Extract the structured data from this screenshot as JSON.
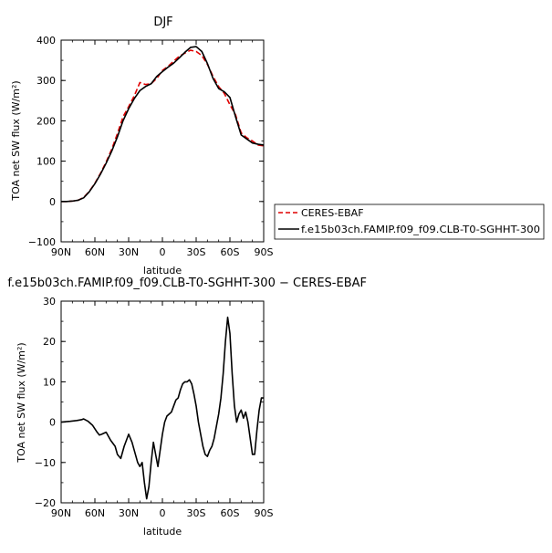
{
  "colors": {
    "ceres": "#e00000",
    "model": "#000000",
    "axis": "#000000"
  },
  "chart_data": [
    {
      "type": "line",
      "title": "DJF",
      "xlabel": "latitude",
      "ylabel": "TOA net SW flux (W/m²)",
      "xlim": [
        -90,
        90
      ],
      "ylim": [
        -100,
        400
      ],
      "x_ticks": [
        "90N",
        "60N",
        "30N",
        "0",
        "30S",
        "60S",
        "90S"
      ],
      "y_ticks": [
        "−100",
        "0",
        "100",
        "200",
        "300",
        "400"
      ],
      "legend_position": "right",
      "series": [
        {
          "name": "CERES-EBAF",
          "style": "dashed",
          "color": "#e00000",
          "x": [
            -90,
            -85,
            -80,
            -75,
            -70,
            -65,
            -60,
            -55,
            -50,
            -45,
            -40,
            -35,
            -30,
            -25,
            -20,
            -15,
            -10,
            -5,
            0,
            5,
            10,
            15,
            20,
            25,
            30,
            35,
            40,
            45,
            50,
            55,
            60,
            65,
            70,
            75,
            80,
            85,
            90
          ],
          "y": [
            0,
            0,
            1,
            3,
            10,
            25,
            45,
            70,
            98,
            130,
            168,
            210,
            235,
            262,
            295,
            290,
            292,
            305,
            325,
            335,
            348,
            360,
            368,
            375,
            372,
            362,
            340,
            310,
            285,
            268,
            240,
            215,
            170,
            158,
            150,
            140,
            138
          ]
        },
        {
          "name": "f.e15b03ch.FAMIP.f09_f09.CLB-T0-SGHHT-300",
          "style": "solid",
          "color": "#000000",
          "x": [
            -90,
            -85,
            -80,
            -75,
            -70,
            -65,
            -60,
            -55,
            -50,
            -45,
            -40,
            -35,
            -30,
            -25,
            -20,
            -15,
            -10,
            -5,
            0,
            5,
            10,
            15,
            20,
            25,
            30,
            35,
            40,
            45,
            50,
            55,
            60,
            65,
            70,
            75,
            80,
            85,
            90
          ],
          "y": [
            0,
            0,
            1,
            3,
            9,
            24,
            44,
            68,
            95,
            125,
            160,
            200,
            230,
            255,
            275,
            285,
            292,
            310,
            322,
            333,
            343,
            356,
            370,
            382,
            384,
            372,
            342,
            305,
            280,
            272,
            258,
            210,
            165,
            155,
            145,
            142,
            140
          ]
        }
      ]
    },
    {
      "type": "line",
      "title": "f.e15b03ch.FAMIP.f09_f09.CLB-T0-SGHHT-300 − CERES-EBAF",
      "xlabel": "latitude",
      "ylabel": "TOA net SW flux (W/m²)",
      "xlim": [
        -90,
        90
      ],
      "ylim": [
        -20,
        30
      ],
      "x_ticks": [
        "90N",
        "60N",
        "30N",
        "0",
        "30S",
        "60S",
        "90S"
      ],
      "y_ticks": [
        "−20",
        "−10",
        "0",
        "10",
        "20",
        "30"
      ],
      "series": [
        {
          "style": "solid",
          "color": "#000000",
          "x": [
            -90,
            -82,
            -76,
            -72,
            -70,
            -66,
            -62,
            -58,
            -56,
            -54,
            -50,
            -46,
            -42,
            -40,
            -37,
            -34,
            -30,
            -27,
            -24,
            -22,
            -20,
            -18,
            -16,
            -14,
            -12,
            -10,
            -8,
            -6,
            -4,
            -2,
            0,
            2,
            4,
            6,
            8,
            10,
            12,
            14,
            16,
            18,
            20,
            22,
            24,
            26,
            28,
            30,
            32,
            34,
            36,
            38,
            40,
            42,
            44,
            46,
            48,
            50,
            52,
            54,
            56,
            58,
            60,
            62,
            64,
            66,
            68,
            70,
            72,
            74,
            76,
            78,
            80,
            82,
            84,
            86,
            88,
            90
          ],
          "y": [
            0,
            0.2,
            0.4,
            0.6,
            0.8,
            0.2,
            -0.8,
            -2.5,
            -3.2,
            -3,
            -2.5,
            -4.5,
            -6,
            -8,
            -9,
            -6,
            -3,
            -5,
            -8,
            -10,
            -11,
            -10,
            -15,
            -19,
            -16,
            -10,
            -5,
            -8,
            -11,
            -7,
            -3,
            0,
            1.5,
            2,
            2.5,
            4,
            5.5,
            6,
            8,
            9.5,
            10,
            10,
            10.5,
            9.5,
            7,
            4,
            0,
            -3,
            -6,
            -8,
            -8.5,
            -7,
            -6,
            -4,
            -1,
            2,
            6,
            12,
            20,
            26,
            22,
            12,
            4,
            0,
            2,
            3,
            1,
            2.5,
            0,
            -4,
            -8,
            -8,
            -2,
            3,
            6,
            6
          ]
        }
      ]
    }
  ]
}
